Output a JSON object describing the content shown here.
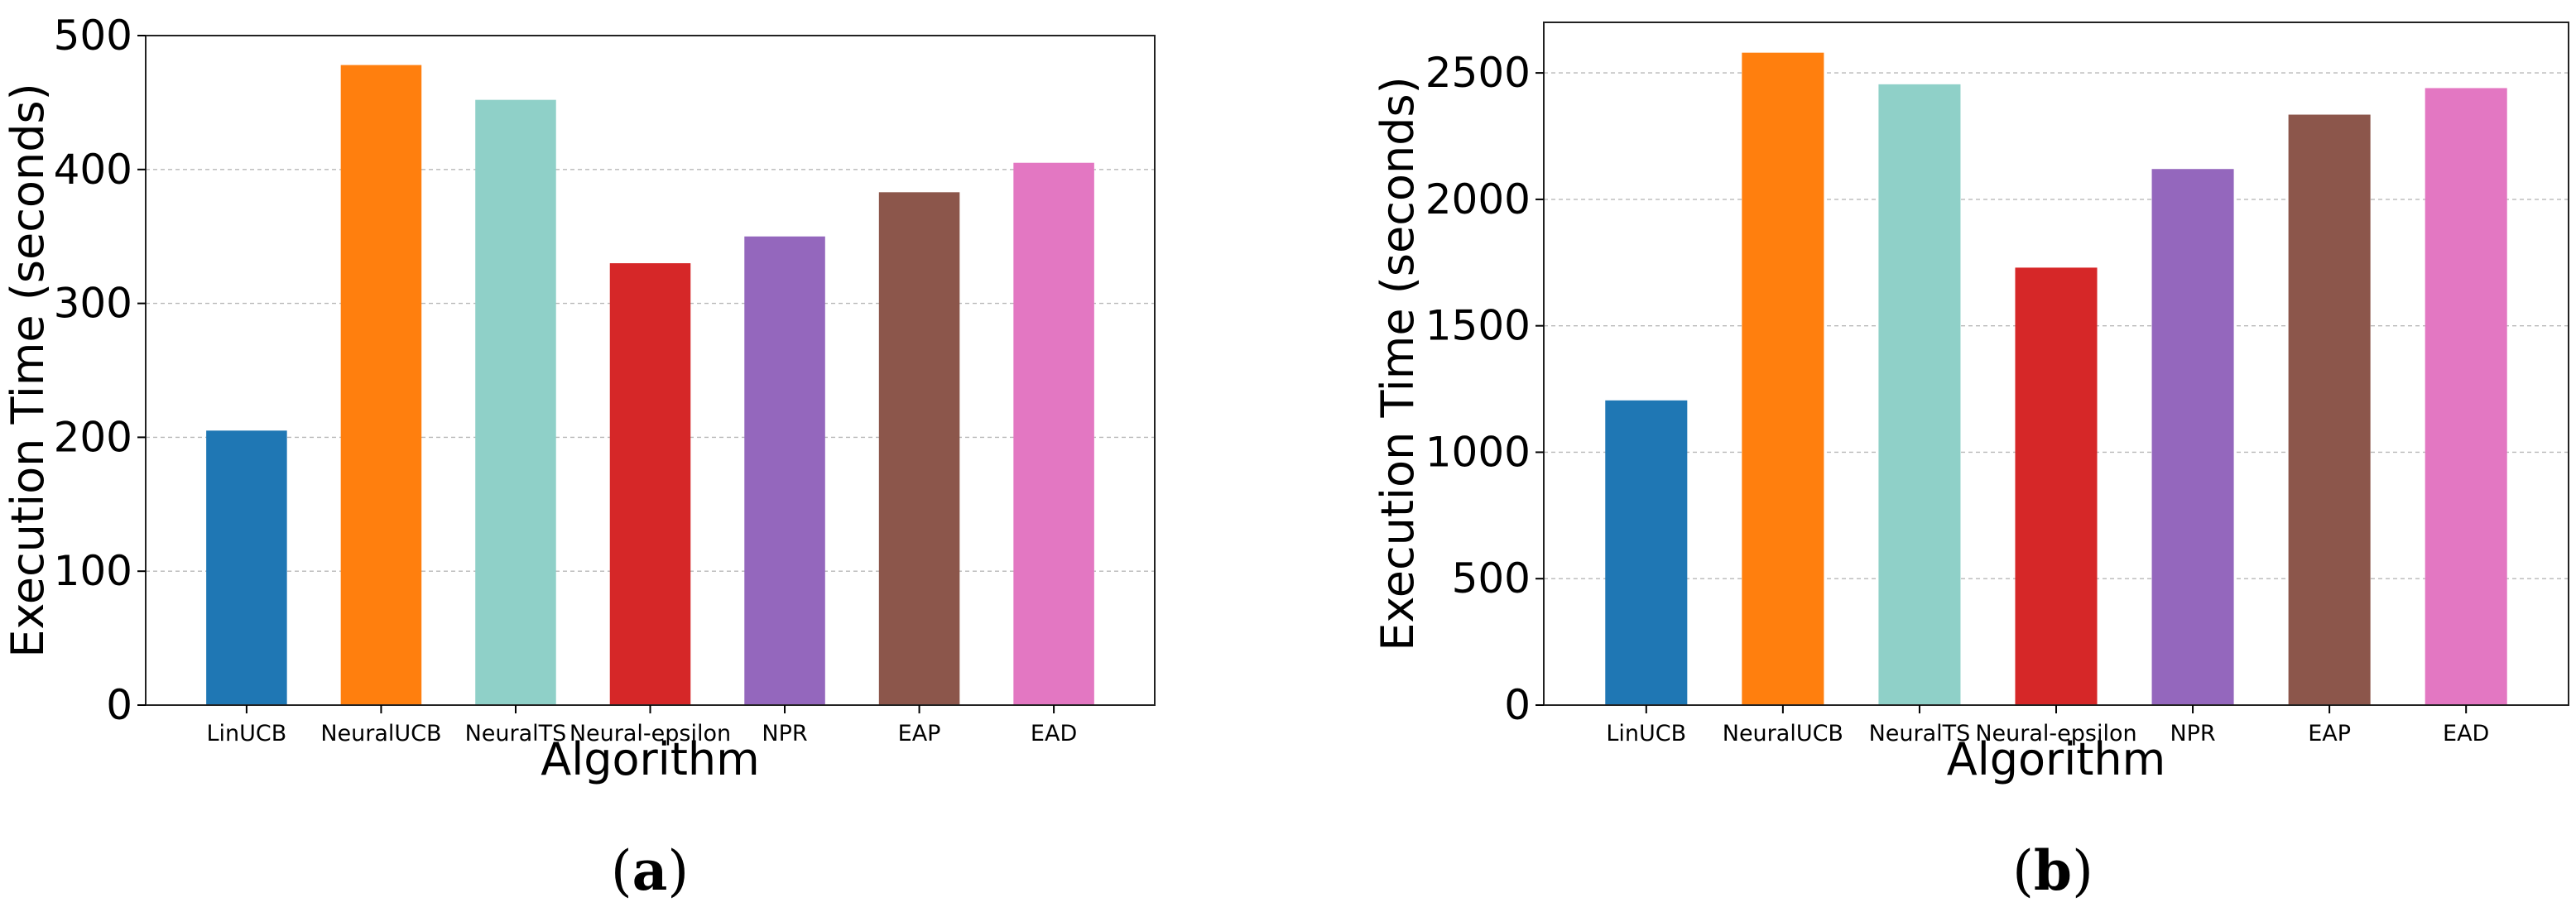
{
  "colors": {
    "LinUCB": "#1f77b4",
    "NeuralUCB": "#ff7f0e",
    "NeuralTS": "#8fd0c8",
    "Neural-epsilon": "#d62728",
    "NPR": "#9467bd",
    "EAP": "#8c564b",
    "EAD": "#e377c2"
  },
  "chart_data": [
    {
      "type": "bar",
      "categories": [
        "LinUCB",
        "NeuralUCB",
        "NeuralTS",
        "Neural-epsilon",
        "NPR",
        "EAP",
        "EAD"
      ],
      "values": [
        205,
        478,
        452,
        330,
        350,
        383,
        405
      ],
      "xlabel": "Algorithm",
      "ylabel": "Execution Time (seconds)",
      "ylim": [
        0,
        500
      ],
      "yticks": [
        0,
        100,
        200,
        300,
        400,
        500
      ],
      "grid": true,
      "caption_paren_open": "(",
      "caption_letter": "a",
      "caption_paren_close": ")"
    },
    {
      "type": "bar",
      "categories": [
        "LinUCB",
        "NeuralUCB",
        "NeuralTS",
        "Neural-epsilon",
        "NPR",
        "EAP",
        "EAD"
      ],
      "values": [
        1205,
        2580,
        2455,
        1730,
        2120,
        2335,
        2440
      ],
      "xlabel": "Algorithm",
      "ylabel": "Execution Time (seconds)",
      "ylim": [
        0,
        2700
      ],
      "yticks": [
        0,
        500,
        1000,
        1500,
        2000,
        2500
      ],
      "grid": true,
      "caption_paren_open": "(",
      "caption_letter": "b",
      "caption_paren_close": ")"
    }
  ]
}
